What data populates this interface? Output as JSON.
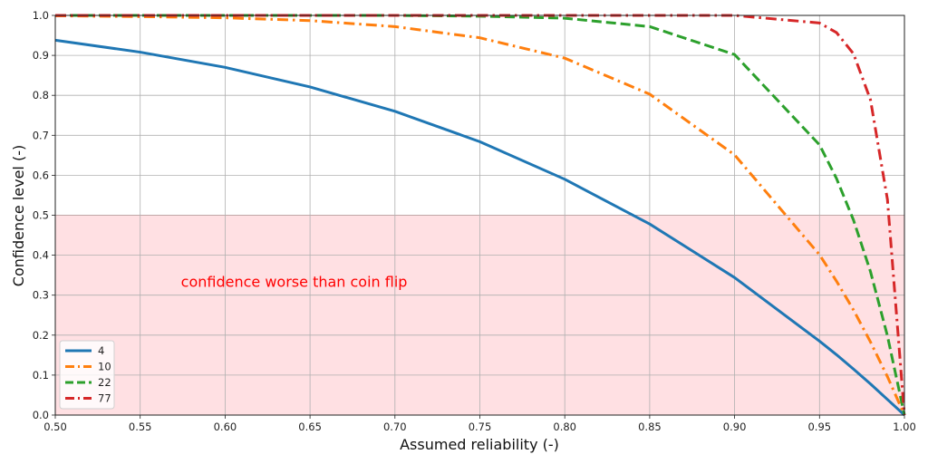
{
  "chart_data": {
    "type": "line",
    "title": "",
    "xlabel": "Assumed reliability (-)",
    "ylabel": "Confidence level (-)",
    "xlim": [
      0.5,
      1.0
    ],
    "ylim": [
      0.0,
      1.0
    ],
    "grid": true,
    "x_ticks": [
      "0.50",
      "0.55",
      "0.60",
      "0.65",
      "0.70",
      "0.75",
      "0.80",
      "0.85",
      "0.90",
      "0.95",
      "1.00"
    ],
    "y_ticks": [
      "0.0",
      "0.1",
      "0.2",
      "0.3",
      "0.4",
      "0.5",
      "0.6",
      "0.7",
      "0.8",
      "0.9",
      "1.0"
    ],
    "legend_position": "lower left",
    "x": [
      0.5,
      0.55,
      0.6,
      0.65,
      0.7,
      0.75,
      0.8,
      0.85,
      0.9,
      0.95,
      0.96,
      0.97,
      0.98,
      0.99,
      1.0
    ],
    "series": [
      {
        "name": "4",
        "color": "#1f77b4",
        "dash": "solid",
        "values": [
          0.938,
          0.908,
          0.87,
          0.821,
          0.76,
          0.684,
          0.59,
          0.478,
          0.344,
          0.185,
          0.151,
          0.115,
          0.078,
          0.039,
          0.0
        ]
      },
      {
        "name": "10",
        "color": "#ff7f0e",
        "dash": "dashdot",
        "values": [
          0.999,
          0.997,
          0.994,
          0.987,
          0.972,
          0.944,
          0.893,
          0.803,
          0.651,
          0.401,
          0.335,
          0.263,
          0.183,
          0.096,
          0.0
        ]
      },
      {
        "name": "22",
        "color": "#2ca02c",
        "dash": "dashed",
        "values": [
          1.0,
          1.0,
          1.0,
          1.0,
          1.0,
          0.998,
          0.993,
          0.972,
          0.902,
          0.676,
          0.592,
          0.488,
          0.359,
          0.198,
          0.0
        ]
      },
      {
        "name": "77",
        "color": "#d62728",
        "dash": "dashdot",
        "values": [
          1.0,
          1.0,
          1.0,
          1.0,
          1.0,
          1.0,
          1.0,
          1.0,
          1.0,
          0.981,
          0.957,
          0.904,
          0.789,
          0.539,
          0.0
        ]
      }
    ],
    "shaded_region": {
      "y_from": 0.0,
      "y_to": 0.5,
      "color": "#ffe0e3",
      "line_color": "#e8686e"
    },
    "annotations": [
      {
        "text": "confidence worse than coin flip",
        "x": 0.574,
        "y": 0.335,
        "color": "#ff0000"
      }
    ]
  }
}
